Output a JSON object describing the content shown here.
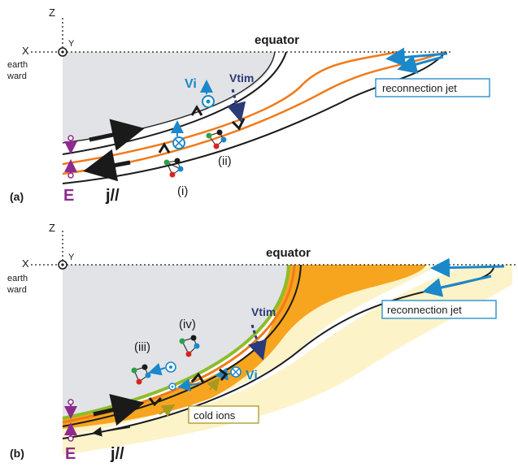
{
  "panel_a": {
    "label": "(a)",
    "axis_z": "Z",
    "axis_x": "X",
    "axis_y": "Y",
    "earthward_line1": "earth",
    "earthward_line2": "ward",
    "equator": "equator",
    "reconnection_jet": "reconnection jet",
    "vi": "Vi",
    "vtim": "Vtim",
    "e": "E",
    "j_par": "j//",
    "case_i": "(i)",
    "case_ii": "(ii)"
  },
  "panel_b": {
    "label": "(b)",
    "axis_z": "Z",
    "axis_x": "X",
    "axis_y": "Y",
    "earthward_line1": "earth",
    "earthward_line2": "ward",
    "equator": "equator",
    "reconnection_jet": "reconnection jet",
    "vi": "Vi",
    "vtim": "Vtim",
    "e": "E",
    "j_par": "j//",
    "case_iii": "(iii)",
    "case_iv": "(iv)",
    "cold_ions": "cold ions"
  },
  "colors": {
    "grey_region": "#e2e3e6",
    "orange_line": "#f07a1a",
    "orange_fill": "#f7a51e",
    "cream_fill": "#fdf3c8",
    "green_line": "#8cbd2a",
    "blue": "#1a88c9",
    "navy": "#2b3a78",
    "purple": "#8e2a8e",
    "olive": "#a89a20",
    "black": "#1a1a1a"
  }
}
